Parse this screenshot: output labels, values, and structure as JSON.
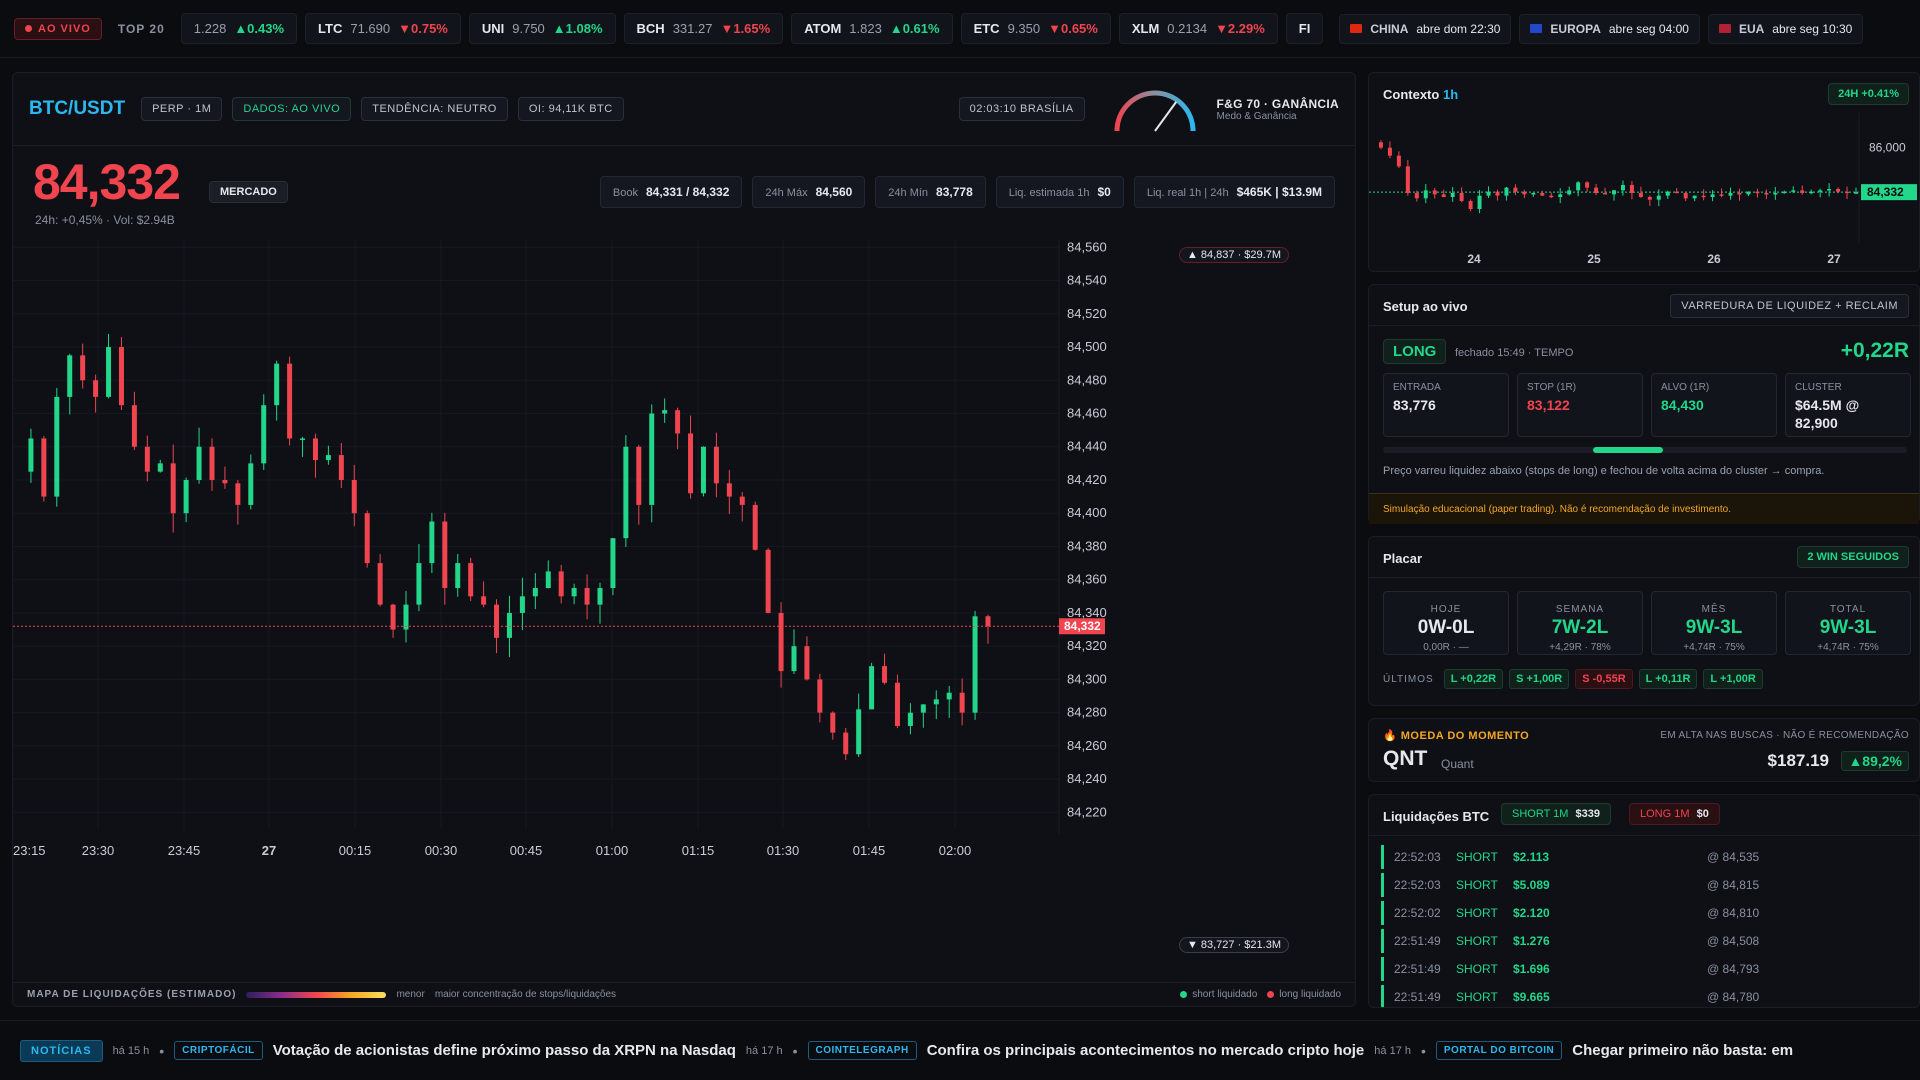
{
  "topbar": {
    "live": "AO VIVO",
    "top20": "TOP 20",
    "tickers": [
      {
        "sym": "",
        "price": "1.228",
        "chg": "▲0.43%",
        "dir": "up"
      },
      {
        "sym": "LTC",
        "price": "71.690",
        "chg": "▼0.75%",
        "dir": "dn"
      },
      {
        "sym": "UNI",
        "price": "9.750",
        "chg": "▲1.08%",
        "dir": "up"
      },
      {
        "sym": "BCH",
        "price": "331.27",
        "chg": "▼1.65%",
        "dir": "dn"
      },
      {
        "sym": "ATOM",
        "price": "1.823",
        "chg": "▲0.61%",
        "dir": "up"
      },
      {
        "sym": "ETC",
        "price": "9.350",
        "chg": "▼0.65%",
        "dir": "dn"
      },
      {
        "sym": "XLM",
        "price": "0.2134",
        "chg": "▼2.29%",
        "dir": "dn"
      },
      {
        "sym": "FI",
        "price": "",
        "chg": "",
        "dir": "up"
      }
    ],
    "markets": [
      {
        "name": "CHINA",
        "time": "abre dom 22:30",
        "flag_color": "#de2910"
      },
      {
        "name": "EUROPA",
        "time": "abre seg 04:00",
        "flag_color": "#2446c8"
      },
      {
        "name": "EUA",
        "time": "abre seg 10:30",
        "flag_color": "#b22234"
      }
    ]
  },
  "main": {
    "symbol": "BTC/USDT",
    "pills": [
      "PERP · 1M",
      "DADOS: AO VIVO",
      "TENDÊNCIA: NEUTRO",
      "OI: 94,11K BTC"
    ],
    "clock": "02:03:10 BRASÍLIA",
    "fg_title": "F&G 70 · GANÂNCIA",
    "fg_sub": "Medo & Ganância",
    "fg_value": 70,
    "price": "84,332",
    "market_label": "MERCADO",
    "sub": "24h: +0,45% · Vol: $2.94B",
    "stats": [
      {
        "k": "Book",
        "v": "84,331 / 84,332"
      },
      {
        "k": "24h Máx",
        "v": "84,560"
      },
      {
        "k": "24h Mín",
        "v": "83,778"
      },
      {
        "k": "Liq. estimada 1h",
        "v": "$0"
      },
      {
        "k": "Liq. real 1h | 24h",
        "v": "$465K | $13.9M"
      }
    ],
    "top_marker": "▲ 84,837 · $29.7M",
    "bottom_marker": "▼ 83,727 · $21.3M",
    "current_label": "84,332",
    "liq_map": {
      "title": "MAPA DE LIQUIDAÇÕES (ESTIMADO)",
      "less": "menor",
      "more": "maior concentração de stops/liquidações",
      "short": "short liquidado",
      "long": "long liquidado"
    }
  },
  "chart_data": {
    "type": "candlestick",
    "y_ticks": [
      84560,
      84540,
      84520,
      84500,
      84480,
      84460,
      84440,
      84420,
      84400,
      84380,
      84360,
      84340,
      84320,
      84300,
      84280,
      84260,
      84240,
      84220
    ],
    "ylim": [
      84210,
      84565
    ],
    "x_ticks": [
      "23:15",
      "23:30",
      "23:45",
      "27",
      "00:15",
      "00:30",
      "00:45",
      "01:00",
      "01:15",
      "01:30",
      "01:45",
      "02:00"
    ],
    "current_price": 84332,
    "close_path": [
      84425,
      84445,
      84410,
      84470,
      84495,
      84480,
      84470,
      84500,
      84465,
      84440,
      84425,
      84430,
      84400,
      84420,
      84440,
      84420,
      84418,
      84405,
      84430,
      84465,
      84490,
      84445,
      84445,
      84432,
      84435,
      84420,
      84400,
      84370,
      84345,
      84330,
      84345,
      84370,
      84395,
      84355,
      84370,
      84350,
      84345,
      84325,
      84340,
      84350,
      84355,
      84365,
      84350,
      84355,
      84345,
      84355,
      84385,
      84440,
      84405,
      84460,
      84462,
      84448,
      84412,
      84440,
      84418,
      84410,
      84405,
      84378,
      84340,
      84305,
      84320,
      84300,
      84280,
      84268,
      84255,
      84282,
      84308,
      84298,
      84272,
      84280,
      84285,
      84288,
      84292,
      84280,
      84338,
      84332
    ]
  },
  "context": {
    "title": "Contexto",
    "tf": "1h",
    "badge": "24H +0.41%",
    "y_labels": [
      "86,000",
      "84,332"
    ],
    "x_labels": [
      "24",
      "25",
      "26",
      "27"
    ]
  },
  "setup": {
    "title": "Setup ao vivo",
    "strategy": "VARREDURA DE LIQUIDEZ + RECLAIM",
    "side": "LONG",
    "closed": "fechado 15:49 · TEMPO",
    "result": "+0,22R",
    "boxes": [
      {
        "k": "ENTRADA",
        "v": "83,776",
        "c": "#e6e8ee"
      },
      {
        "k": "STOP (1R)",
        "v": "83,122",
        "c": "#f0444f"
      },
      {
        "k": "ALVO (1R)",
        "v": "84,430",
        "c": "#22d68a"
      },
      {
        "k": "CLUSTER",
        "v": "$64.5M @",
        "v2": "82,900",
        "c": "#e6e8ee"
      }
    ],
    "desc": "Preço varreu liquidez abaixo (stops de long) e fechou de volta acima do cluster → compra.",
    "disclaimer": "Simulação educacional (paper trading). Não é recomendação de investimento."
  },
  "placar": {
    "title": "Placar",
    "badge": "2 WIN SEGUIDOS",
    "cards": [
      {
        "k": "HOJE",
        "v": "0W-0L",
        "s": "0,00R · —",
        "c": "#e6e8ee"
      },
      {
        "k": "SEMANA",
        "v": "7W-2L",
        "s": "+4,29R · 78%",
        "c": "#22d68a"
      },
      {
        "k": "MÊS",
        "v": "9W-3L",
        "s": "+4,74R · 75%",
        "c": "#22d68a"
      },
      {
        "k": "TOTAL",
        "v": "9W-3L",
        "s": "+4,74R · 75%",
        "c": "#22d68a"
      }
    ],
    "last_label": "ÚLTIMOS",
    "last": [
      {
        "t": "L +0,22R",
        "c": "g"
      },
      {
        "t": "S +1,00R",
        "c": "g"
      },
      {
        "t": "S -0,55R",
        "c": "r"
      },
      {
        "t": "L +0,11R",
        "c": "g"
      },
      {
        "t": "L +1,00R",
        "c": "g"
      }
    ]
  },
  "moeda": {
    "label": "MOEDA DO MOMENTO",
    "note": "EM ALTA NAS BUSCAS · NÃO É RECOMENDAÇÃO",
    "sym": "QNT",
    "name": "Quant",
    "price": "$187.19",
    "chg": "▲89,2%"
  },
  "liqs": {
    "title": "Liquidações BTC",
    "short_chip": "SHORT 1M",
    "short_val": "$339",
    "long_chip": "LONG 1M",
    "long_val": "$0",
    "rows": [
      {
        "time": "22:52:03",
        "side": "SHORT",
        "amt": "$2.113",
        "at": "@ 84,535"
      },
      {
        "time": "22:52:03",
        "side": "SHORT",
        "amt": "$5.089",
        "at": "@ 84,815"
      },
      {
        "time": "22:52:02",
        "side": "SHORT",
        "amt": "$2.120",
        "at": "@ 84,810"
      },
      {
        "time": "22:51:49",
        "side": "SHORT",
        "amt": "$1.276",
        "at": "@ 84,508"
      },
      {
        "time": "22:51:49",
        "side": "SHORT",
        "amt": "$1.696",
        "at": "@ 84,793"
      },
      {
        "time": "22:51:49",
        "side": "SHORT",
        "amt": "$9.665",
        "at": "@ 84,780"
      }
    ]
  },
  "news": {
    "label": "NOTÍCIAS",
    "items": [
      {
        "ago": "há 15 h",
        "src": "CRIPTOFÁCIL",
        "title": "Votação de acionistas define próximo passo da XRPN na Nasdaq"
      },
      {
        "ago": "há 17 h",
        "src": "COINTELEGRAPH",
        "title": "Confira os principais acontecimentos no mercado cripto hoje"
      },
      {
        "ago": "há 17 h",
        "src": "PORTAL DO BITCOIN",
        "title": "Chegar primeiro não basta: em"
      }
    ]
  },
  "colors": {
    "up": "#22d68a",
    "down": "#f0444f",
    "accent": "#2bb8f0"
  }
}
